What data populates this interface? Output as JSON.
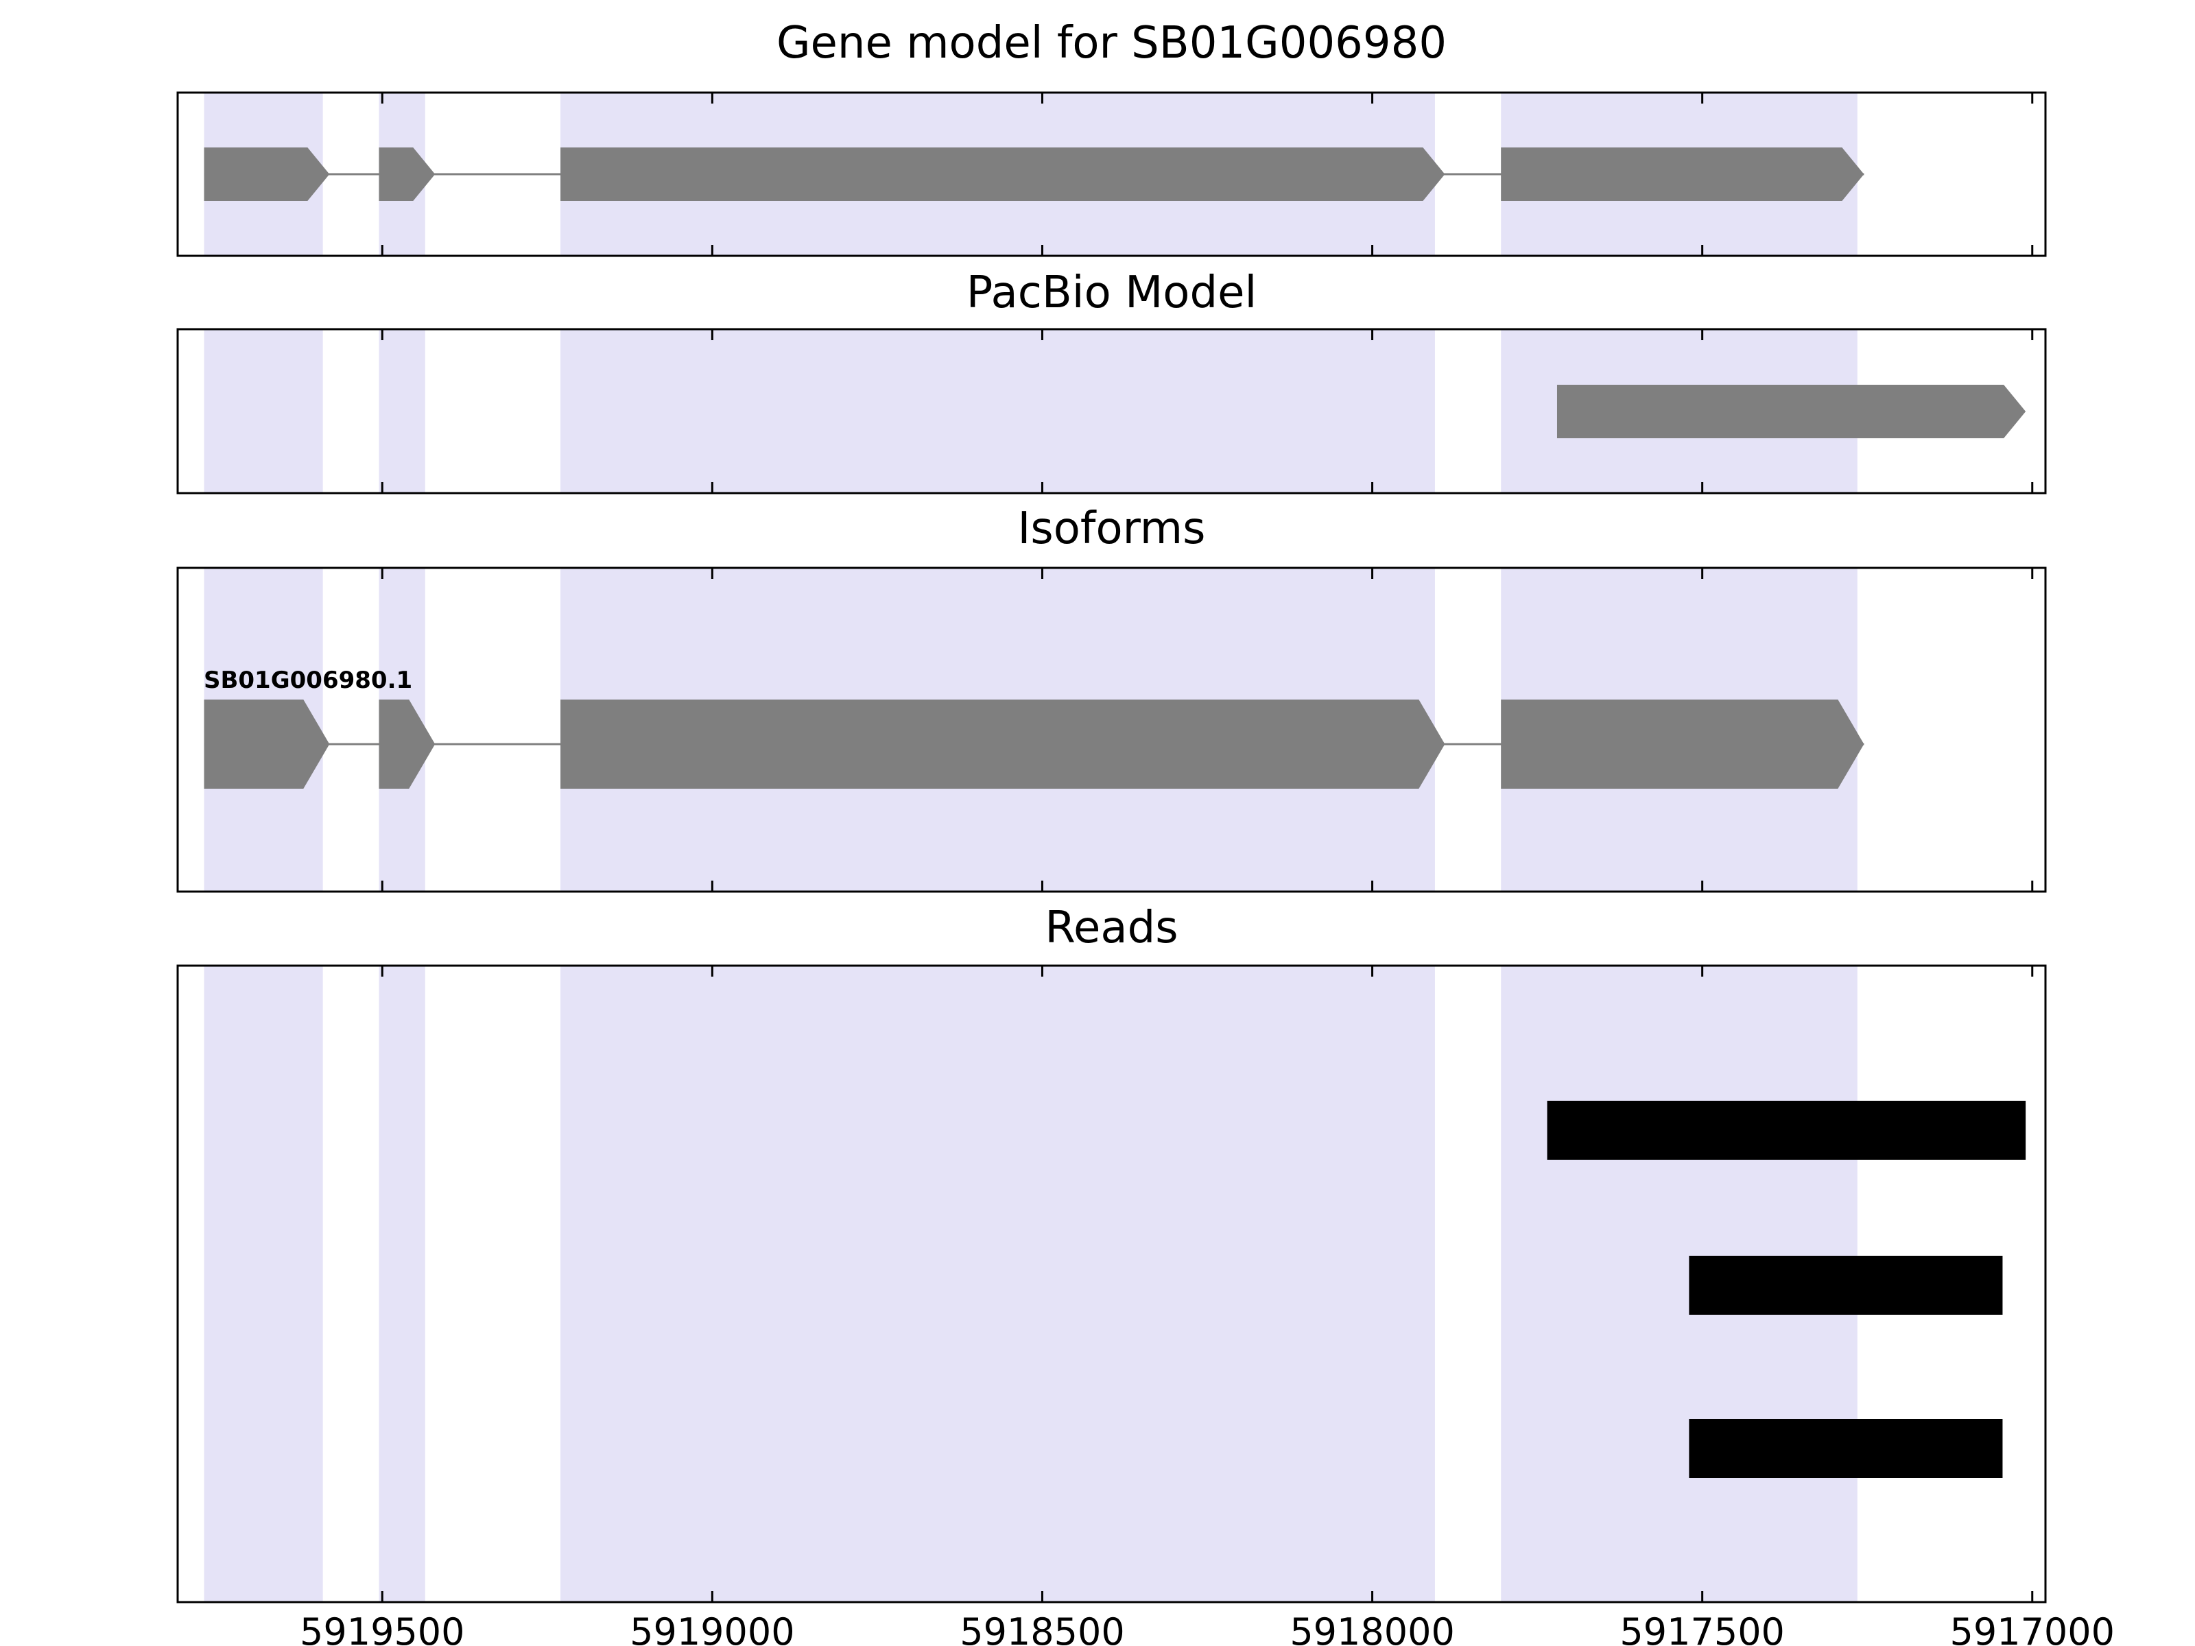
{
  "figure": {
    "background": "#ffffff",
    "colors": {
      "exon_fill": "#7f7f7f",
      "intron_line": "#808080",
      "highlight_band": "#e5e3f7",
      "read_fill": "#000000",
      "panel_border": "#000000",
      "text": "#000000"
    }
  },
  "chart_data": {
    "type": "genome-tracks",
    "title": "Gene model for SB01G006980",
    "x_axis": {
      "orientation": "decreasing",
      "range": [
        5919810,
        5916980
      ],
      "ticks": [
        5919500,
        5919000,
        5918500,
        5918000,
        5917500,
        5917000
      ],
      "tick_labels": [
        "5919500",
        "5919000",
        "5918500",
        "5918000",
        "5917500",
        "5917000"
      ]
    },
    "exon_highlight_bands": [
      {
        "start": 5919770,
        "end": 5919590
      },
      {
        "start": 5919505,
        "end": 5919435
      },
      {
        "start": 5919230,
        "end": 5917905
      },
      {
        "start": 5917805,
        "end": 5917265
      }
    ],
    "tracks": [
      {
        "name": "gene_model",
        "title": "Gene model for SB01G006980",
        "features": [
          {
            "kind": "exon-arrow",
            "start": 5919770,
            "end": 5919580
          },
          {
            "kind": "exon-arrow",
            "start": 5919505,
            "end": 5919420
          },
          {
            "kind": "exon-arrow",
            "start": 5919230,
            "end": 5917890
          },
          {
            "kind": "exon-arrow",
            "start": 5917805,
            "end": 5917255
          }
        ]
      },
      {
        "name": "pacbio_model",
        "title": "PacBio Model",
        "features": [
          {
            "kind": "exon-arrow",
            "start": 5917720,
            "end": 5917010
          }
        ]
      },
      {
        "name": "isoforms",
        "title": "Isoforms",
        "label": "SB01G006980.1",
        "features": [
          {
            "kind": "exon-arrow",
            "start": 5919770,
            "end": 5919580
          },
          {
            "kind": "exon-arrow",
            "start": 5919505,
            "end": 5919420
          },
          {
            "kind": "exon-arrow",
            "start": 5919230,
            "end": 5917890
          },
          {
            "kind": "exon-arrow",
            "start": 5917805,
            "end": 5917255
          }
        ]
      },
      {
        "name": "reads",
        "title": "Reads",
        "reads": [
          {
            "start": 5917735,
            "end": 5917010,
            "row": 0
          },
          {
            "start": 5917520,
            "end": 5917045,
            "row": 1
          },
          {
            "start": 5917520,
            "end": 5917045,
            "row": 2
          }
        ]
      }
    ]
  }
}
